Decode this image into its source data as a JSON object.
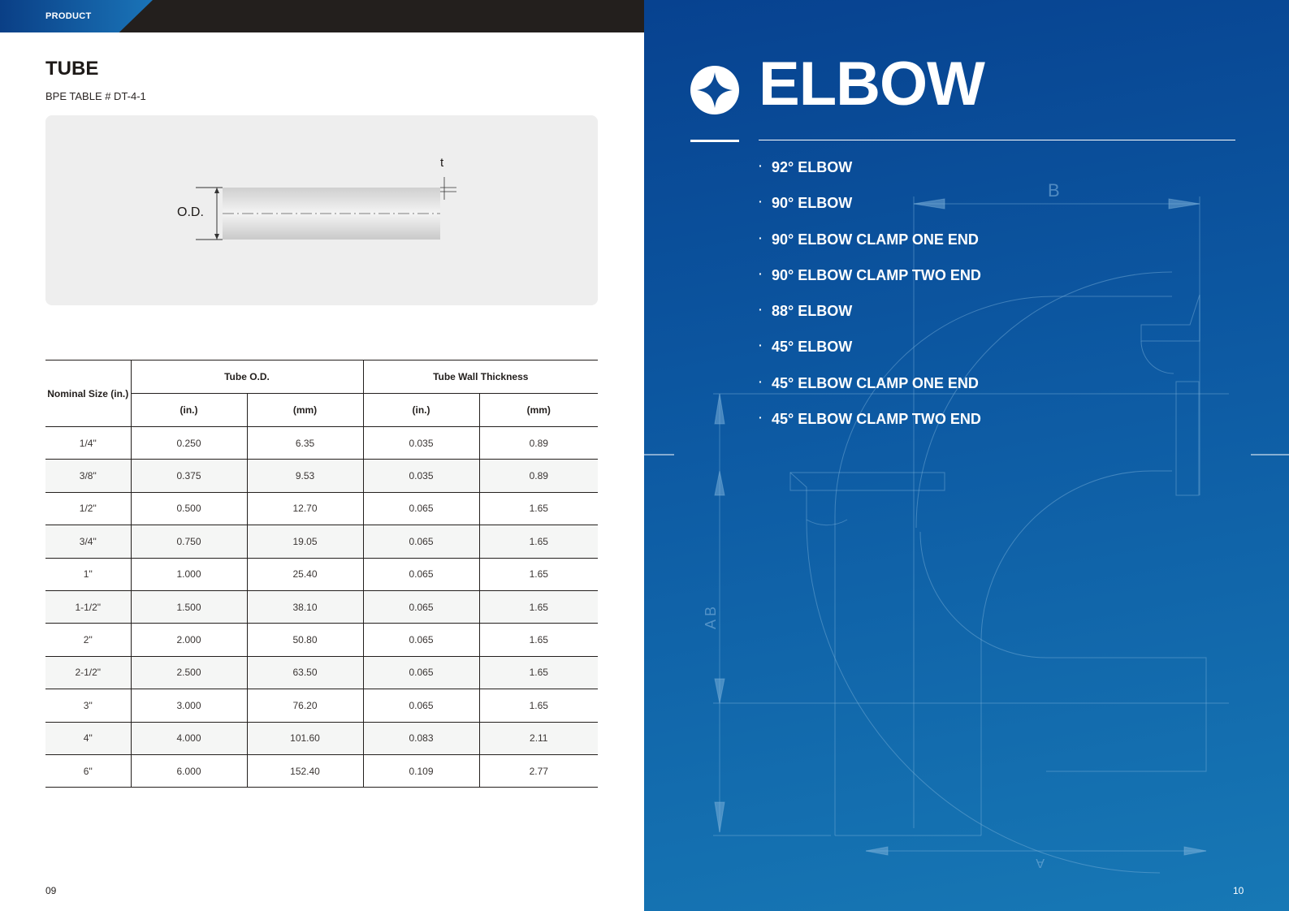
{
  "header": {
    "section_label": "PRODUCT"
  },
  "tube": {
    "title": "TUBE",
    "subtitle": "BPE TABLE # DT-4-1",
    "diagram": {
      "od_label": "O.D.",
      "t_label": "t"
    }
  },
  "table": {
    "nominal_header": "Nominal Size (in.)",
    "od_group": "Tube O.D.",
    "wall_group": "Tube Wall Thickness",
    "unit_in": "(in.)",
    "unit_mm": "(mm)",
    "rows": [
      [
        "1/4\"",
        "0.250",
        "6.35",
        "0.035",
        "0.89"
      ],
      [
        "3/8\"",
        "0.375",
        "9.53",
        "0.035",
        "0.89"
      ],
      [
        "1/2\"",
        "0.500",
        "12.70",
        "0.065",
        "1.65"
      ],
      [
        "3/4\"",
        "0.750",
        "19.05",
        "0.065",
        "1.65"
      ],
      [
        "1\"",
        "1.000",
        "25.40",
        "0.065",
        "1.65"
      ],
      [
        "1-1/2\"",
        "1.500",
        "38.10",
        "0.065",
        "1.65"
      ],
      [
        "2\"",
        "2.000",
        "50.80",
        "0.065",
        "1.65"
      ],
      [
        "2-1/2\"",
        "2.500",
        "63.50",
        "0.065",
        "1.65"
      ],
      [
        "3\"",
        "3.000",
        "76.20",
        "0.065",
        "1.65"
      ],
      [
        "4\"",
        "4.000",
        "101.60",
        "0.083",
        "2.11"
      ],
      [
        "6\"",
        "6.000",
        "152.40",
        "0.109",
        "2.77"
      ]
    ]
  },
  "elbow": {
    "title": "ELBOW",
    "items": [
      "92° ELBOW",
      "90° ELBOW",
      "90° ELBOW CLAMP ONE END",
      "90° ELBOW CLAMP TWO END",
      "88° ELBOW",
      "45° ELBOW",
      "45° ELBOW CLAMP ONE END",
      "45° ELBOW CLAMP TWO END"
    ],
    "bullet": "·",
    "blueprint_labels": {
      "b_top": "B",
      "a_b_side": "A  B",
      "a_bottom": "A"
    }
  },
  "pages": {
    "left": "09",
    "right": "10"
  }
}
